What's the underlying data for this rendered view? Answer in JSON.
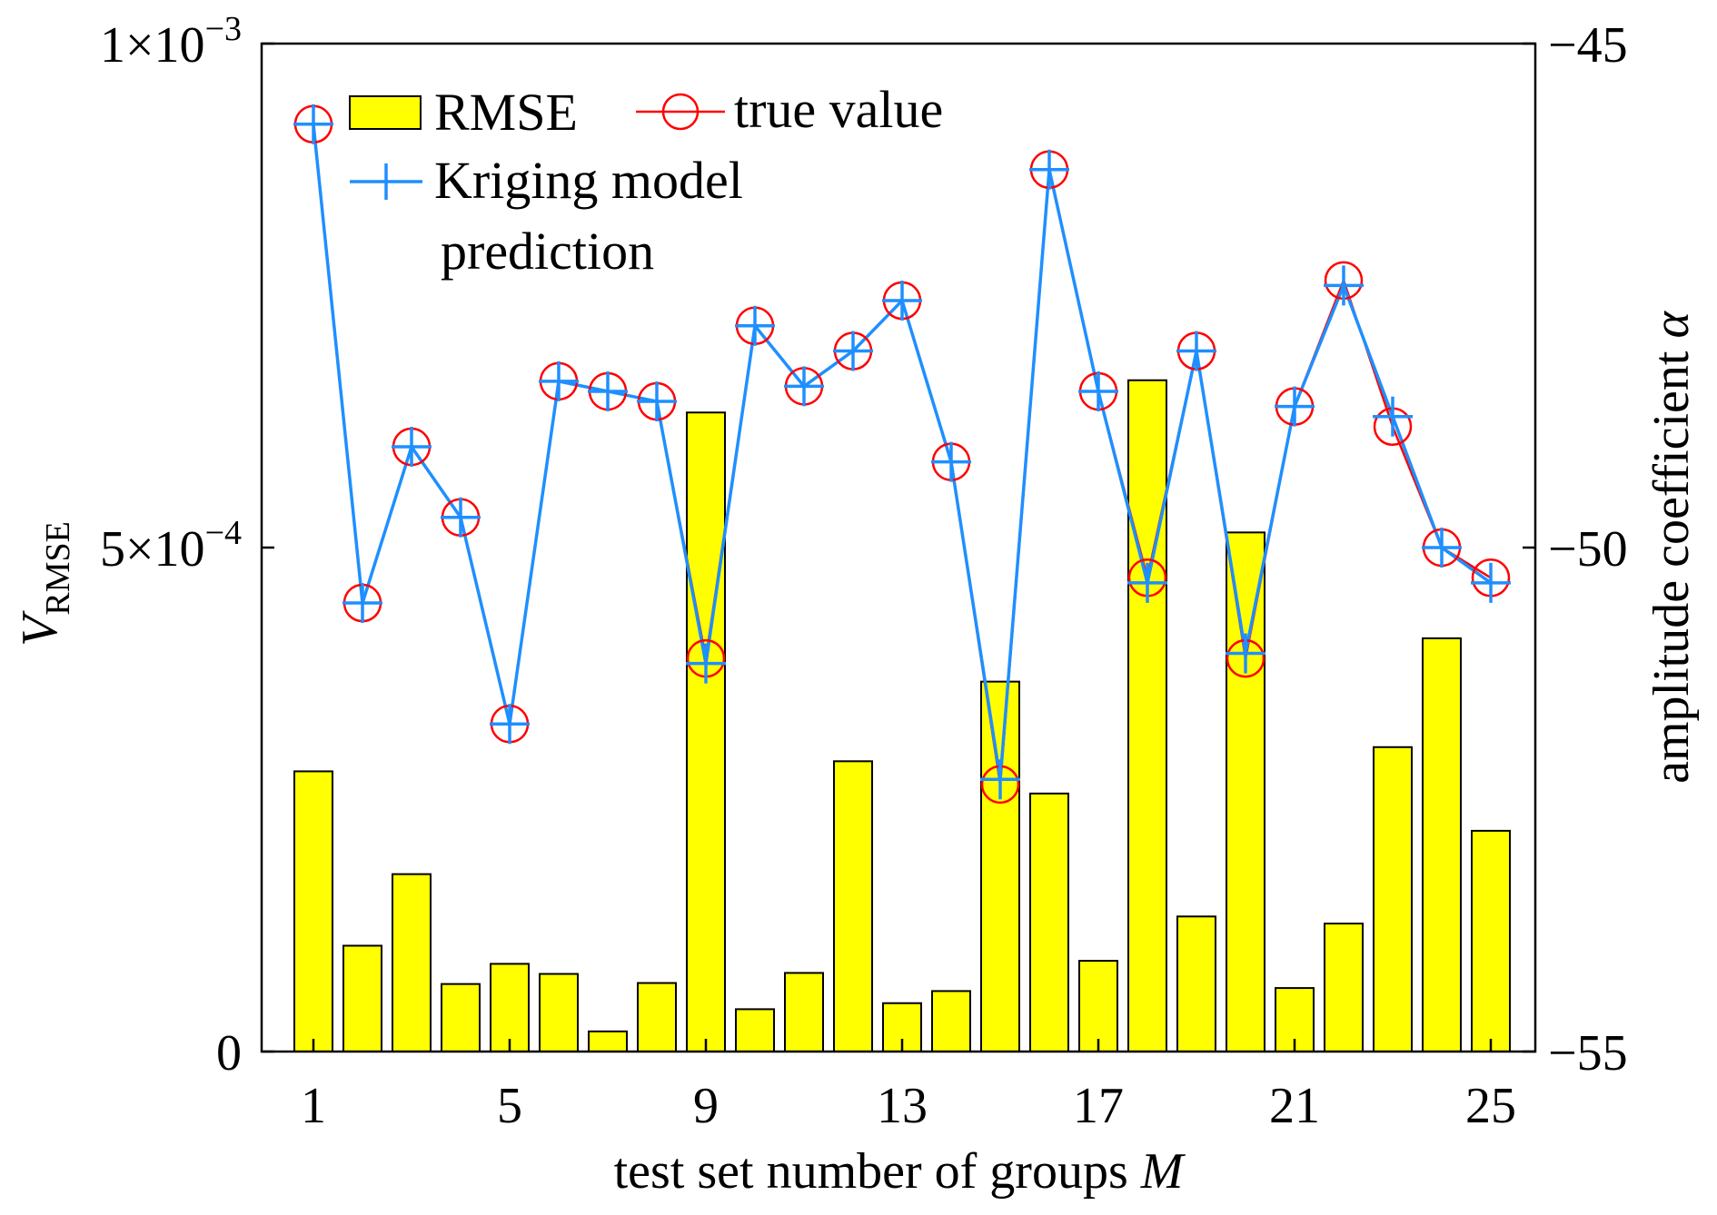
{
  "chart_data": {
    "type": "bar+line",
    "x": [
      1,
      2,
      3,
      4,
      5,
      6,
      7,
      8,
      9,
      10,
      11,
      12,
      13,
      14,
      15,
      16,
      17,
      18,
      19,
      20,
      21,
      22,
      23,
      24,
      25
    ],
    "xticks": [
      "1",
      "5",
      "9",
      "13",
      "17",
      "21",
      "25"
    ],
    "xtick_values": [
      1,
      5,
      9,
      13,
      17,
      21,
      25
    ],
    "xlabel": "test set number of groups",
    "xlabel_var": "M",
    "ylabel_left_var": "V",
    "ylabel_left_sub": "RMSE",
    "ylabel_right": "amplitude coefficient",
    "ylabel_right_var": "α",
    "ylim_left": [
      0,
      0.001
    ],
    "ylim_right": [
      -55,
      -45
    ],
    "left_ticks": [
      {
        "value": 0,
        "base": "0",
        "exp": ""
      },
      {
        "value": 0.0005,
        "base": "5×10",
        "exp": "−4"
      },
      {
        "value": 0.001,
        "base": "1×10",
        "exp": "−3"
      }
    ],
    "right_ticks": [
      {
        "value": -55,
        "label": "−55"
      },
      {
        "value": -50,
        "label": "−50"
      },
      {
        "value": -45,
        "label": "−45"
      }
    ],
    "series": [
      {
        "name": "RMSE",
        "kind": "bar",
        "axis": "left",
        "color": "#ffff00",
        "values": [
          0.000278,
          0.000105,
          0.000176,
          6.7e-05,
          8.7e-05,
          7.7e-05,
          2e-05,
          6.8e-05,
          0.000634,
          4.2e-05,
          7.8e-05,
          0.000288,
          4.8e-05,
          6e-05,
          0.000367,
          0.000256,
          9e-05,
          0.000666,
          0.000134,
          0.000515,
          6.3e-05,
          0.000127,
          0.000302,
          0.00041,
          0.000219
        ]
      },
      {
        "name": "true value",
        "kind": "line-marker",
        "axis": "right",
        "color": "#ff0000",
        "marker": "circle",
        "values": [
          -45.8,
          -50.55,
          -49.0,
          -49.7,
          -51.75,
          -48.35,
          -48.45,
          -48.55,
          -51.1,
          -47.8,
          -48.4,
          -48.05,
          -47.55,
          -49.15,
          -52.35,
          -46.25,
          -48.45,
          -50.3,
          -48.05,
          -51.1,
          -48.6,
          -47.35,
          -48.8,
          -50.0,
          -50.3
        ]
      },
      {
        "name": "Kriging model prediction",
        "kind": "line-marker",
        "axis": "right",
        "color": "#1f8fff",
        "marker": "plus",
        "values": [
          -45.8,
          -50.55,
          -49.0,
          -49.7,
          -51.75,
          -48.35,
          -48.45,
          -48.55,
          -51.15,
          -47.8,
          -48.4,
          -48.05,
          -47.55,
          -49.15,
          -52.3,
          -46.25,
          -48.45,
          -50.35,
          -48.05,
          -51.05,
          -48.6,
          -47.4,
          -48.7,
          -50.0,
          -50.35
        ]
      }
    ],
    "legend": {
      "placement": "top-left",
      "rmse_label": "RMSE",
      "true_label": "true value",
      "kriging_line1": "Kriging model",
      "kriging_line2": "prediction"
    },
    "grid": false
  }
}
